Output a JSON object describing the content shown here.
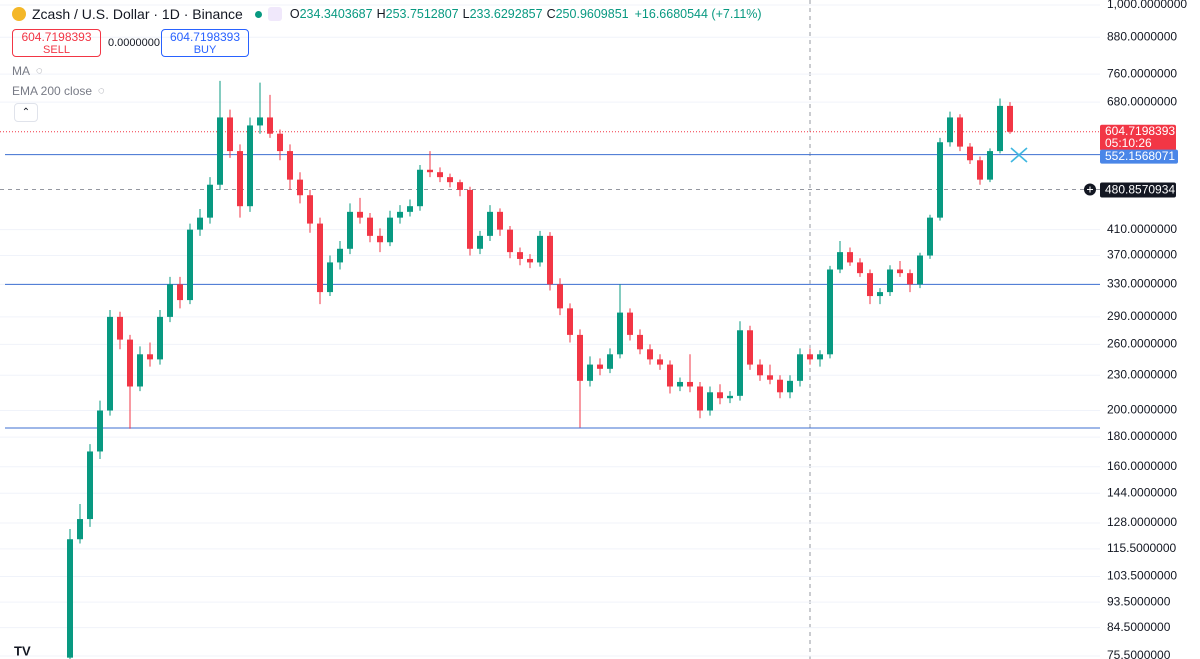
{
  "chart_data": {
    "type": "candlestick",
    "title": "Zcash / U.S. Dollar · 1D · Binance",
    "ohlc_legend": {
      "o_label": "O",
      "o": 234.3403687,
      "h_label": "H",
      "h": 253.7512807,
      "l_label": "L",
      "l": 233.6292857,
      "c_label": "C",
      "c": 250.9609851,
      "change": "+16.6680544 (+7.11%)"
    },
    "trade_panel": {
      "sell_price": 604.7198393,
      "sell_label": "SELL",
      "spread": "0.0000000",
      "buy_price": 604.7198393,
      "buy_label": "BUY"
    },
    "indicators": [
      "MA",
      "EMA 200 close"
    ],
    "log_scale": true,
    "grid": true,
    "up_color": "#089981",
    "down_color": "#f23645",
    "ylim": [
      74.6,
      1020
    ],
    "yticks": [
      {
        "value": 1000,
        "label": "1,000.0000000"
      },
      {
        "value": 880,
        "label": "880.0000000"
      },
      {
        "value": 760,
        "label": "760.0000000"
      },
      {
        "value": 680,
        "label": "680.0000000"
      },
      {
        "value": 410,
        "label": "410.0000000"
      },
      {
        "value": 370,
        "label": "370.0000000"
      },
      {
        "value": 330,
        "label": "330.0000000"
      },
      {
        "value": 290,
        "label": "290.0000000"
      },
      {
        "value": 260,
        "label": "260.0000000"
      },
      {
        "value": 230,
        "label": "230.0000000"
      },
      {
        "value": 200,
        "label": "200.0000000"
      },
      {
        "value": 180,
        "label": "180.0000000"
      },
      {
        "value": 160,
        "label": "160.0000000"
      },
      {
        "value": 144,
        "label": "144.0000000"
      },
      {
        "value": 128,
        "label": "128.0000000"
      },
      {
        "value": 115.5,
        "label": "115.5000000"
      },
      {
        "value": 103.5,
        "label": "103.5000000"
      },
      {
        "value": 93.5,
        "label": "93.5000000"
      },
      {
        "value": 84.5,
        "label": "84.5000000"
      },
      {
        "value": 75.5,
        "label": "75.5000000"
      }
    ],
    "last_price": {
      "value": 604.7198393,
      "countdown": "05:10:26",
      "color": "#f23645"
    },
    "price_line": {
      "value": 552.1568071,
      "color": "#3d6fd1"
    },
    "crosshair": {
      "value": 480.8570934
    },
    "horizontal_lines": [
      330,
      186.6
    ],
    "candles": {
      "open": [
        75,
        120,
        130,
        170,
        200,
        290,
        265,
        220,
        250,
        245,
        290,
        330,
        310,
        410,
        430,
        490,
        640,
        560,
        450,
        620,
        640,
        600,
        560,
        500,
        470,
        420,
        320,
        360,
        380,
        440,
        430,
        400,
        390,
        430,
        440,
        450,
        520,
        515,
        505,
        495,
        480,
        380,
        400,
        440,
        410,
        375,
        365,
        360,
        400,
        330,
        300,
        270,
        225,
        240,
        236,
        250,
        295,
        270,
        255,
        245,
        240,
        220,
        224,
        220,
        200,
        215,
        210,
        212,
        275,
        240,
        230,
        226,
        215,
        225,
        250,
        245,
        250,
        350,
        375,
        360,
        345,
        315,
        320,
        350,
        345,
        330,
        370,
        430,
        580,
        640,
        570,
        540,
        500,
        560,
        670
      ],
      "high": [
        125,
        138,
        175,
        208,
        298,
        296,
        270,
        258,
        262,
        298,
        340,
        340,
        420,
        445,
        505,
        740,
        660,
        575,
        640,
        735,
        700,
        610,
        575,
        515,
        480,
        430,
        370,
        392,
        455,
        465,
        438,
        412,
        442,
        452,
        462,
        530,
        560,
        525,
        512,
        500,
        486,
        408,
        452,
        446,
        416,
        382,
        372,
        408,
        406,
        338,
        306,
        276,
        248,
        246,
        256,
        330,
        300,
        276,
        260,
        250,
        244,
        228,
        250,
        224,
        220,
        222,
        216,
        285,
        280,
        245,
        240,
        230,
        230,
        256,
        256,
        254,
        355,
        392,
        382,
        366,
        350,
        325,
        356,
        362,
        350,
        374,
        435,
        590,
        655,
        648,
        578,
        548,
        566,
        690,
        680
      ],
      "low": [
        74,
        118,
        126,
        165,
        196,
        255,
        186,
        216,
        238,
        240,
        284,
        300,
        305,
        400,
        420,
        480,
        545,
        430,
        440,
        600,
        590,
        540,
        480,
        455,
        405,
        305,
        315,
        350,
        372,
        420,
        390,
        375,
        384,
        420,
        432,
        442,
        505,
        495,
        485,
        468,
        370,
        372,
        392,
        400,
        366,
        356,
        352,
        354,
        322,
        292,
        262,
        187,
        220,
        230,
        232,
        246,
        264,
        250,
        240,
        235,
        214,
        216,
        215,
        194,
        196,
        205,
        206,
        208,
        235,
        225,
        222,
        210,
        210,
        220,
        240,
        238,
        246,
        345,
        355,
        340,
        305,
        305,
        315,
        340,
        320,
        325,
        365,
        425,
        570,
        560,
        532,
        490,
        495,
        555,
        600
      ],
      "close": [
        120,
        130,
        170,
        200,
        290,
        265,
        220,
        250,
        245,
        290,
        330,
        310,
        410,
        430,
        490,
        640,
        560,
        450,
        620,
        640,
        600,
        560,
        500,
        470,
        420,
        320,
        360,
        380,
        440,
        430,
        400,
        390,
        430,
        440,
        450,
        520,
        515,
        505,
        495,
        480,
        380,
        400,
        440,
        410,
        375,
        365,
        360,
        400,
        330,
        300,
        270,
        225,
        240,
        236,
        250,
        295,
        270,
        255,
        245,
        240,
        220,
        224,
        220,
        200,
        215,
        210,
        212,
        275,
        240,
        230,
        226,
        215,
        225,
        250,
        245,
        250,
        350,
        375,
        360,
        345,
        315,
        320,
        350,
        345,
        330,
        370,
        430,
        580,
        640,
        570,
        540,
        500,
        560,
        670,
        604.7198393
      ]
    }
  }
}
